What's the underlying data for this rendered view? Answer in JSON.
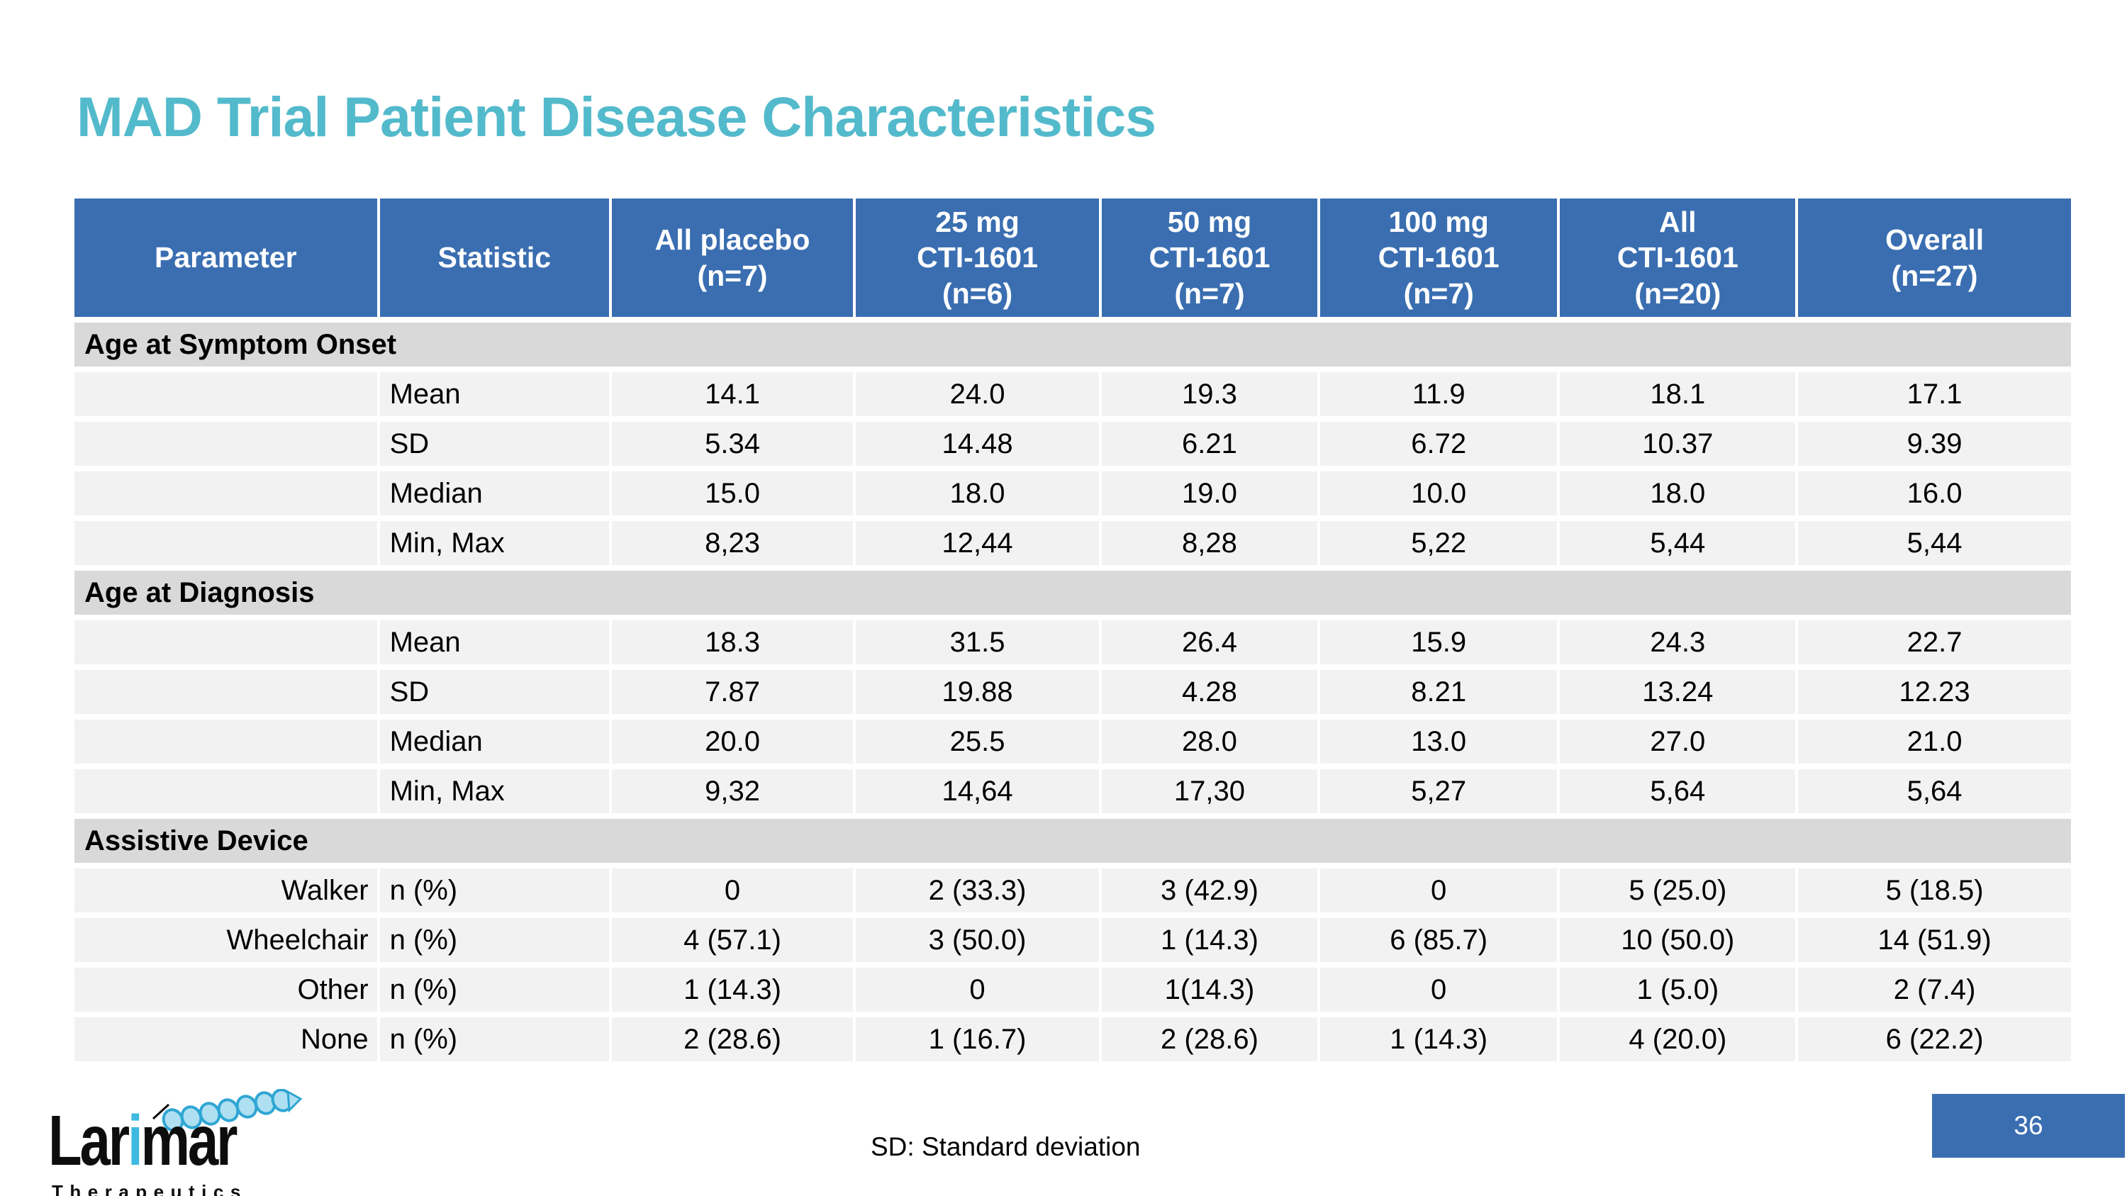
{
  "slide": {
    "title": "MAD Trial Patient Disease Characteristics",
    "footer_note": "SD: Standard deviation",
    "page_number": "36",
    "logo": {
      "brand_part1": "Lar",
      "brand_part2": "i",
      "brand_part3": "mar",
      "subtitle": "Therapeutics"
    }
  },
  "colors": {
    "header_blue": "#3A6EB1",
    "section_gray": "#D9D9D9",
    "row_gray": "#F2F2F2",
    "title_teal": "#53BACC",
    "logo_cyan": "#3EB9DF"
  },
  "table": {
    "columns": [
      "Parameter",
      "Statistic",
      "All placebo\n(n=7)",
      "25 mg\nCTI-1601\n(n=6)",
      "50 mg\nCTI-1601\n(n=7)",
      "100 mg\nCTI-1601\n(n=7)",
      "All\nCTI-1601\n(n=20)",
      "Overall\n(n=27)"
    ],
    "sections": [
      {
        "title": "Age at Symptom Onset",
        "rows": [
          {
            "parameter": "",
            "statistic": "Mean",
            "values": [
              "14.1",
              "24.0",
              "19.3",
              "11.9",
              "18.1",
              "17.1"
            ]
          },
          {
            "parameter": "",
            "statistic": "SD",
            "values": [
              "5.34",
              "14.48",
              "6.21",
              "6.72",
              "10.37",
              "9.39"
            ]
          },
          {
            "parameter": "",
            "statistic": "Median",
            "values": [
              "15.0",
              "18.0",
              "19.0",
              "10.0",
              "18.0",
              "16.0"
            ]
          },
          {
            "parameter": "",
            "statistic": "Min, Max",
            "values": [
              "8,23",
              "12,44",
              "8,28",
              "5,22",
              "5,44",
              "5,44"
            ]
          }
        ]
      },
      {
        "title": "Age at Diagnosis",
        "rows": [
          {
            "parameter": "",
            "statistic": "Mean",
            "values": [
              "18.3",
              "31.5",
              "26.4",
              "15.9",
              "24.3",
              "22.7"
            ]
          },
          {
            "parameter": "",
            "statistic": "SD",
            "values": [
              "7.87",
              "19.88",
              "4.28",
              "8.21",
              "13.24",
              "12.23"
            ]
          },
          {
            "parameter": "",
            "statistic": "Median",
            "values": [
              "20.0",
              "25.5",
              "28.0",
              "13.0",
              "27.0",
              "21.0"
            ]
          },
          {
            "parameter": "",
            "statistic": "Min, Max",
            "values": [
              "9,32",
              "14,64",
              "17,30",
              "5,27",
              "5,64",
              "5,64"
            ]
          }
        ]
      },
      {
        "title": "Assistive Device",
        "rows": [
          {
            "parameter": "Walker",
            "statistic": "n (%)",
            "values": [
              "0",
              "2 (33.3)",
              "3 (42.9)",
              "0",
              "5 (25.0)",
              "5 (18.5)"
            ]
          },
          {
            "parameter": "Wheelchair",
            "statistic": "n (%)",
            "values": [
              "4 (57.1)",
              "3 (50.0)",
              "1 (14.3)",
              "6 (85.7)",
              "10 (50.0)",
              "14 (51.9)"
            ]
          },
          {
            "parameter": "Other",
            "statistic": "n (%)",
            "values": [
              "1 (14.3)",
              "0",
              "1(14.3)",
              "0",
              "1 (5.0)",
              "2 (7.4)"
            ]
          },
          {
            "parameter": "None",
            "statistic": "n (%)",
            "values": [
              "2 (28.6)",
              "1 (16.7)",
              "2 (28.6)",
              "1 (14.3)",
              "4 (20.0)",
              "6 (22.2)"
            ]
          }
        ]
      }
    ]
  }
}
